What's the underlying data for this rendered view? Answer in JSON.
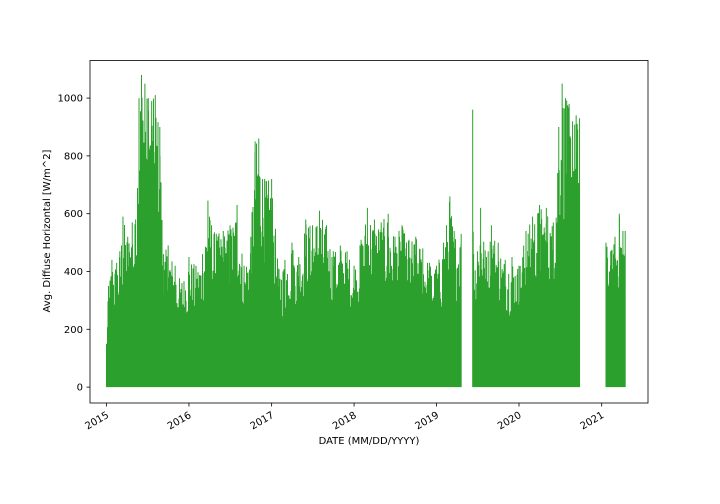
{
  "chart_data": {
    "type": "line",
    "title": "",
    "xlabel": "DATE (MM/DD/YYYY)",
    "ylabel": "Avg. Diffuse Horizontal [W/m^2]",
    "xlim": [
      "2014-10-20",
      "2021-07-25"
    ],
    "ylim": [
      -55,
      1130
    ],
    "x_ticks": [
      "2015",
      "2016",
      "2017",
      "2018",
      "2019",
      "2020",
      "2021"
    ],
    "y_ticks": [
      0,
      200,
      400,
      600,
      800,
      1000
    ],
    "grid": false,
    "series": [
      {
        "color": "#2ca02c",
        "min_value": 0,
        "segments": [
          {
            "start": "2015-01-01",
            "end": "2019-04-20",
            "envelope": [
              [
                "2015-01-01",
                150
              ],
              [
                "2015-01-10",
                350
              ],
              [
                "2015-01-25",
                440
              ],
              [
                "2015-02-15",
                430
              ],
              [
                "2015-03-01",
                470
              ],
              [
                "2015-03-15",
                590
              ],
              [
                "2015-04-05",
                520
              ],
              [
                "2015-04-25",
                570
              ],
              [
                "2015-05-10",
                580
              ],
              [
                "2015-05-25",
                1000
              ],
              [
                "2015-06-05",
                1080
              ],
              [
                "2015-06-20",
                1050
              ],
              [
                "2015-07-05",
                1000
              ],
              [
                "2015-07-20",
                990
              ],
              [
                "2015-08-05",
                1010
              ],
              [
                "2015-08-25",
                900
              ],
              [
                "2015-09-10",
                460
              ],
              [
                "2015-10-01",
                490
              ],
              [
                "2015-11-01",
                420
              ],
              [
                "2015-12-01",
                360
              ],
              [
                "2016-01-01",
                450
              ],
              [
                "2016-02-01",
                420
              ],
              [
                "2016-03-01",
                460
              ],
              [
                "2016-03-25",
                645
              ],
              [
                "2016-04-10",
                560
              ],
              [
                "2016-05-01",
                530
              ],
              [
                "2016-06-01",
                540
              ],
              [
                "2016-07-01",
                560
              ],
              [
                "2016-08-01",
                630
              ],
              [
                "2016-09-01",
                420
              ],
              [
                "2016-10-01",
                520
              ],
              [
                "2016-10-20",
                850
              ],
              [
                "2016-11-05",
                860
              ],
              [
                "2016-12-01",
                720
              ],
              [
                "2017-01-01",
                720
              ],
              [
                "2017-02-01",
                410
              ],
              [
                "2017-03-01",
                440
              ],
              [
                "2017-04-01",
                500
              ],
              [
                "2017-05-01",
                450
              ],
              [
                "2017-06-01",
                580
              ],
              [
                "2017-07-01",
                560
              ],
              [
                "2017-08-01",
                610
              ],
              [
                "2017-09-01",
                560
              ],
              [
                "2017-10-01",
                470
              ],
              [
                "2017-11-01",
                490
              ],
              [
                "2017-12-01",
                470
              ],
              [
                "2018-01-01",
                420
              ],
              [
                "2018-02-01",
                510
              ],
              [
                "2018-03-01",
                620
              ],
              [
                "2018-04-01",
                580
              ],
              [
                "2018-05-01",
                570
              ],
              [
                "2018-06-01",
                600
              ],
              [
                "2018-07-01",
                520
              ],
              [
                "2018-08-01",
                560
              ],
              [
                "2018-09-01",
                510
              ],
              [
                "2018-10-01",
                520
              ],
              [
                "2018-11-01",
                480
              ],
              [
                "2018-12-01",
                430
              ],
              [
                "2019-01-01",
                420
              ],
              [
                "2019-02-01",
                500
              ],
              [
                "2019-03-01",
                660
              ],
              [
                "2019-03-20",
                540
              ],
              [
                "2019-04-20",
                530
              ]
            ]
          },
          {
            "start": "2019-06-10",
            "end": "2020-09-25",
            "envelope": [
              [
                "2019-06-10",
                960
              ],
              [
                "2019-06-14",
                460
              ],
              [
                "2019-07-01",
                470
              ],
              [
                "2019-07-15",
                620
              ],
              [
                "2019-08-10",
                450
              ],
              [
                "2019-09-01",
                560
              ],
              [
                "2019-10-01",
                500
              ],
              [
                "2019-11-01",
                440
              ],
              [
                "2019-12-01",
                450
              ],
              [
                "2020-01-01",
                420
              ],
              [
                "2020-02-01",
                540
              ],
              [
                "2020-03-01",
                590
              ],
              [
                "2020-04-01",
                630
              ],
              [
                "2020-05-01",
                620
              ],
              [
                "2020-06-01",
                570
              ],
              [
                "2020-06-25",
                900
              ],
              [
                "2020-07-10",
                1050
              ],
              [
                "2020-07-25",
                1000
              ],
              [
                "2020-08-10",
                980
              ],
              [
                "2020-08-25",
                920
              ],
              [
                "2020-09-10",
                940
              ],
              [
                "2020-09-25",
                930
              ]
            ]
          },
          {
            "start": "2021-01-20",
            "end": "2021-04-15",
            "envelope": [
              [
                "2021-01-20",
                500
              ],
              [
                "2021-02-10",
                470
              ],
              [
                "2021-03-01",
                520
              ],
              [
                "2021-03-20",
                600
              ],
              [
                "2021-04-05",
                540
              ],
              [
                "2021-04-15",
                540
              ]
            ]
          }
        ]
      }
    ]
  }
}
